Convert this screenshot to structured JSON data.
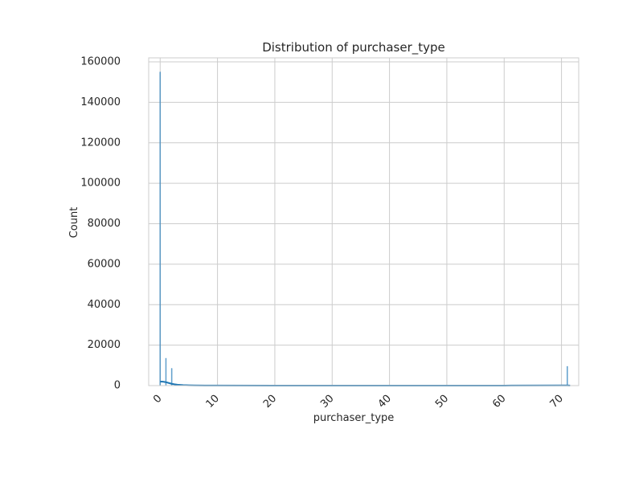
{
  "chart_data": {
    "type": "bar",
    "title": "Distribution of purchaser_type",
    "xlabel": "purchaser_type",
    "ylabel": "Count",
    "xlim": [
      -2,
      73
    ],
    "ylim": [
      0,
      162000
    ],
    "xticks": [
      0,
      10,
      20,
      30,
      40,
      50,
      60,
      70
    ],
    "yticks": [
      0,
      20000,
      40000,
      60000,
      80000,
      100000,
      120000,
      140000,
      160000
    ],
    "grid": true,
    "legend": "none",
    "colors": {
      "bars": "#3182bd",
      "kde": "#1f77b4",
      "grid": "#cccccc",
      "spine": "#cccccc"
    },
    "bins": [
      {
        "x": 0,
        "count": 155000
      },
      {
        "x": 1,
        "count": 13500
      },
      {
        "x": 2,
        "count": 8500
      },
      {
        "x": 71,
        "count": 9500
      }
    ],
    "kde": {
      "x": [
        0,
        0.5,
        1,
        1.5,
        2,
        2.5,
        3,
        4,
        5,
        6,
        8,
        10,
        20,
        40,
        60,
        70,
        71,
        71.5
      ],
      "y": [
        2000,
        1950,
        1700,
        1300,
        900,
        650,
        450,
        250,
        150,
        100,
        50,
        30,
        10,
        10,
        20,
        80,
        110,
        60
      ]
    }
  }
}
